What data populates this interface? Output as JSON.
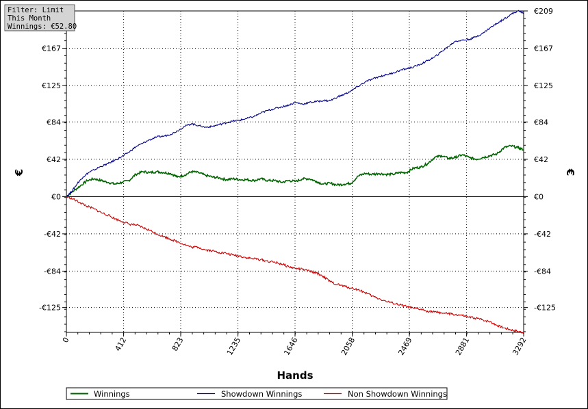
{
  "filter_box": {
    "line1": "Filter: Limit",
    "line2": "This Month",
    "line3": "Winnings: €52.80"
  },
  "chart_data": {
    "type": "line",
    "xlabel": "Hands",
    "ylabel": "€",
    "xlim": [
      0,
      3292
    ],
    "ylim": [
      -153,
      209
    ],
    "x_ticks": [
      0,
      412,
      823,
      1235,
      1646,
      2058,
      2469,
      2881,
      3292
    ],
    "y_ticks": [
      209,
      167,
      125,
      84,
      42,
      0,
      -42,
      -84,
      -125
    ],
    "y_tick_labels": [
      "€209",
      "€167",
      "€125",
      "€84",
      "€42",
      "€0",
      "-€42",
      "-€84",
      "-€125"
    ],
    "grid": true,
    "legend_position": "bottom",
    "series": [
      {
        "name": "Winnings",
        "color": "#006400",
        "x": [
          0,
          40,
          100,
          150,
          200,
          250,
          300,
          350,
          400,
          450,
          500,
          550,
          600,
          650,
          700,
          750,
          800,
          850,
          900,
          950,
          1000,
          1050,
          1100,
          1150,
          1200,
          1250,
          1300,
          1350,
          1400,
          1450,
          1500,
          1550,
          1600,
          1650,
          1700,
          1750,
          1800,
          1850,
          1900,
          1950,
          2000,
          2050,
          2100,
          2150,
          2200,
          2250,
          2300,
          2350,
          2400,
          2450,
          2500,
          2550,
          2600,
          2650,
          2700,
          2750,
          2800,
          2850,
          2900,
          2950,
          3000,
          3050,
          3100,
          3150,
          3200,
          3250,
          3292
        ],
        "y": [
          0,
          5,
          12,
          18,
          20,
          18,
          16,
          14,
          16,
          18,
          25,
          28,
          27,
          28,
          27,
          26,
          22,
          24,
          28,
          27,
          24,
          22,
          21,
          19,
          20,
          19,
          19,
          18,
          20,
          18,
          18,
          16,
          18,
          17,
          20,
          20,
          17,
          14,
          15,
          13,
          14,
          15,
          23,
          26,
          25,
          26,
          25,
          25,
          27,
          27,
          32,
          33,
          37,
          44,
          46,
          43,
          44,
          47,
          44,
          42,
          44,
          46,
          48,
          55,
          57,
          55,
          52.8
        ]
      },
      {
        "name": "Showdown Winnings",
        "color": "#00008b",
        "x": [
          0,
          40,
          80,
          120,
          160,
          200,
          250,
          300,
          350,
          400,
          450,
          500,
          550,
          600,
          650,
          700,
          750,
          800,
          850,
          900,
          950,
          1000,
          1050,
          1100,
          1150,
          1200,
          1250,
          1300,
          1350,
          1400,
          1450,
          1500,
          1550,
          1600,
          1650,
          1700,
          1750,
          1800,
          1850,
          1900,
          1950,
          2000,
          2050,
          2100,
          2150,
          2200,
          2250,
          2300,
          2350,
          2400,
          2450,
          2500,
          2550,
          2600,
          2650,
          2700,
          2750,
          2800,
          2850,
          2900,
          2950,
          3000,
          3050,
          3100,
          3150,
          3200,
          3250,
          3292
        ],
        "y": [
          0,
          6,
          15,
          22,
          27,
          30,
          34,
          37,
          41,
          45,
          50,
          56,
          60,
          64,
          67,
          68,
          70,
          74,
          79,
          82,
          80,
          78,
          79,
          81,
          83,
          85,
          86,
          88,
          90,
          94,
          97,
          99,
          101,
          103,
          106,
          104,
          106,
          107,
          108,
          108,
          112,
          115,
          119,
          124,
          129,
          132,
          135,
          137,
          139,
          142,
          144,
          146,
          149,
          153,
          157,
          163,
          169,
          175,
          176,
          177,
          180,
          184,
          190,
          195,
          200,
          205,
          209,
          207
        ]
      },
      {
        "name": "Non Showdown Winnings",
        "color": "#cc0000",
        "x": [
          0,
          50,
          100,
          150,
          200,
          250,
          300,
          350,
          400,
          450,
          500,
          550,
          600,
          650,
          700,
          750,
          800,
          850,
          900,
          950,
          1000,
          1050,
          1100,
          1150,
          1200,
          1250,
          1300,
          1350,
          1400,
          1450,
          1500,
          1550,
          1600,
          1650,
          1700,
          1750,
          1800,
          1850,
          1900,
          1950,
          2000,
          2050,
          2100,
          2150,
          2200,
          2250,
          2300,
          2350,
          2400,
          2450,
          2500,
          2550,
          2600,
          2650,
          2700,
          2750,
          2800,
          2850,
          2900,
          2950,
          3000,
          3050,
          3100,
          3150,
          3200,
          3250,
          3292
        ],
        "y": [
          0,
          -3,
          -7,
          -11,
          -14,
          -18,
          -21,
          -25,
          -28,
          -31,
          -32,
          -35,
          -38,
          -42,
          -45,
          -48,
          -51,
          -54,
          -57,
          -57,
          -60,
          -61,
          -63,
          -64,
          -66,
          -67,
          -69,
          -70,
          -71,
          -73,
          -74,
          -76,
          -79,
          -81,
          -82,
          -84,
          -86,
          -90,
          -96,
          -99,
          -101,
          -103,
          -105,
          -108,
          -112,
          -115,
          -118,
          -120,
          -122,
          -124,
          -126,
          -127,
          -129,
          -130,
          -131,
          -132,
          -133,
          -134,
          -136,
          -137,
          -139,
          -141,
          -145,
          -148,
          -150,
          -152,
          -153
        ]
      }
    ]
  }
}
